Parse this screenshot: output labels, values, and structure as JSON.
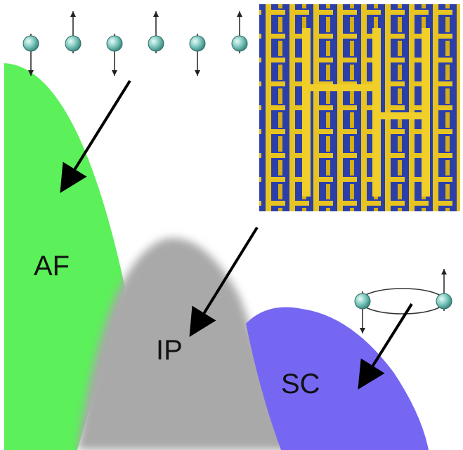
{
  "regions": [
    {
      "id": "af",
      "label": "AF",
      "color": "#5cf05a"
    },
    {
      "id": "ip",
      "label": "IP",
      "color": "#a9a9a9"
    },
    {
      "id": "sc",
      "label": "SC",
      "color": "#7667f2"
    }
  ],
  "spin_chain": {
    "orientations": [
      "down",
      "up",
      "down",
      "up",
      "down",
      "up"
    ],
    "ball_color": "#7fc9bf"
  },
  "cooper_pair": {
    "orientations": [
      "down",
      "up"
    ]
  },
  "inset": {
    "pattern_colors": [
      "#e8c421",
      "#2c3fa8"
    ]
  }
}
